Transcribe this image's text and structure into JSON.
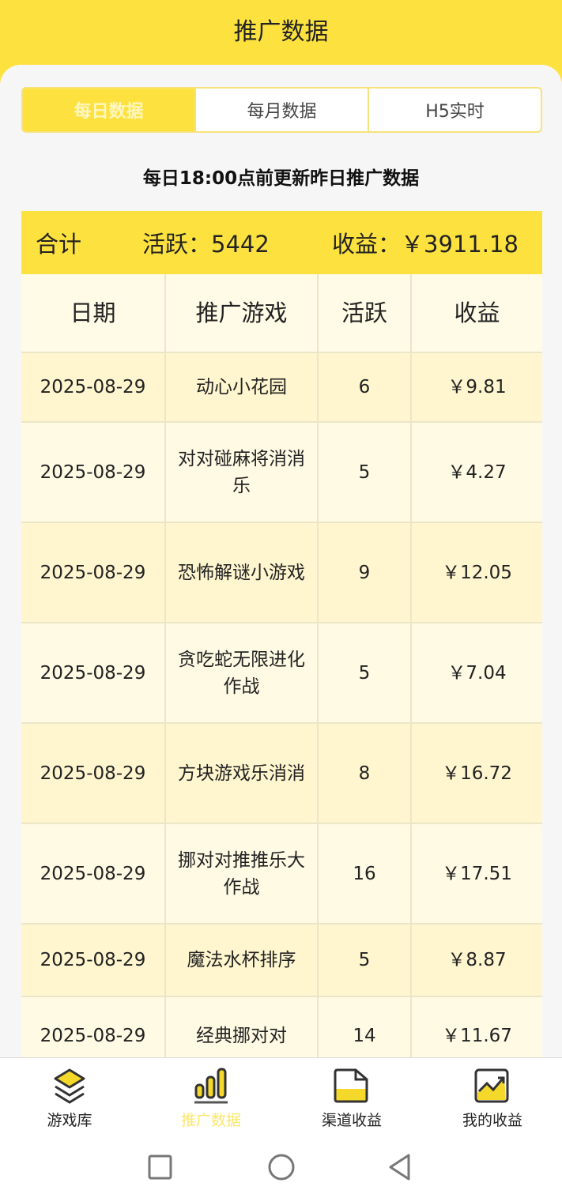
{
  "header": {
    "title": "推广数据"
  },
  "tabs": [
    {
      "label": "每日数据",
      "active": true
    },
    {
      "label": "每月数据"
    },
    {
      "label": "H5实时"
    }
  ],
  "notice": "每日18:00点前更新昨日推广数据",
  "summary": {
    "label": "合计",
    "active": "活跃：5442",
    "income": "收益：￥3911.18"
  },
  "table": {
    "columns": [
      "日期",
      "推广游戏",
      "活跃",
      "收益"
    ],
    "rows": [
      {
        "date": "2025-08-29",
        "game": "动心小花园",
        "active": "6",
        "income": "￥9.81"
      },
      {
        "date": "2025-08-29",
        "game": "对对碰麻将消消乐",
        "active": "5",
        "income": "￥4.27"
      },
      {
        "date": "2025-08-29",
        "game": "恐怖解谜小游戏",
        "active": "9",
        "income": "￥12.05"
      },
      {
        "date": "2025-08-29",
        "game": "贪吃蛇无限进化作战",
        "active": "5",
        "income": "￥7.04"
      },
      {
        "date": "2025-08-29",
        "game": "方块游戏乐消消",
        "active": "8",
        "income": "￥16.72"
      },
      {
        "date": "2025-08-29",
        "game": "挪对对推推乐大作战",
        "active": "16",
        "income": "￥17.51"
      },
      {
        "date": "2025-08-29",
        "game": "魔法水杯排序",
        "active": "5",
        "income": "￥8.87"
      },
      {
        "date": "2025-08-29",
        "game": "经典挪对对",
        "active": "14",
        "income": "￥11.67"
      }
    ]
  },
  "nav": [
    {
      "label": "游戏库",
      "icon": "layers-icon"
    },
    {
      "label": "推广数据",
      "icon": "bar-chart-icon",
      "active": true
    },
    {
      "label": "渠道收益",
      "icon": "folder-icon"
    },
    {
      "label": "我的收益",
      "icon": "trend-chart-icon"
    }
  ],
  "colors": {
    "accent": "#fde23f",
    "row_a": "#fff6cf",
    "row_b": "#fffae4"
  }
}
